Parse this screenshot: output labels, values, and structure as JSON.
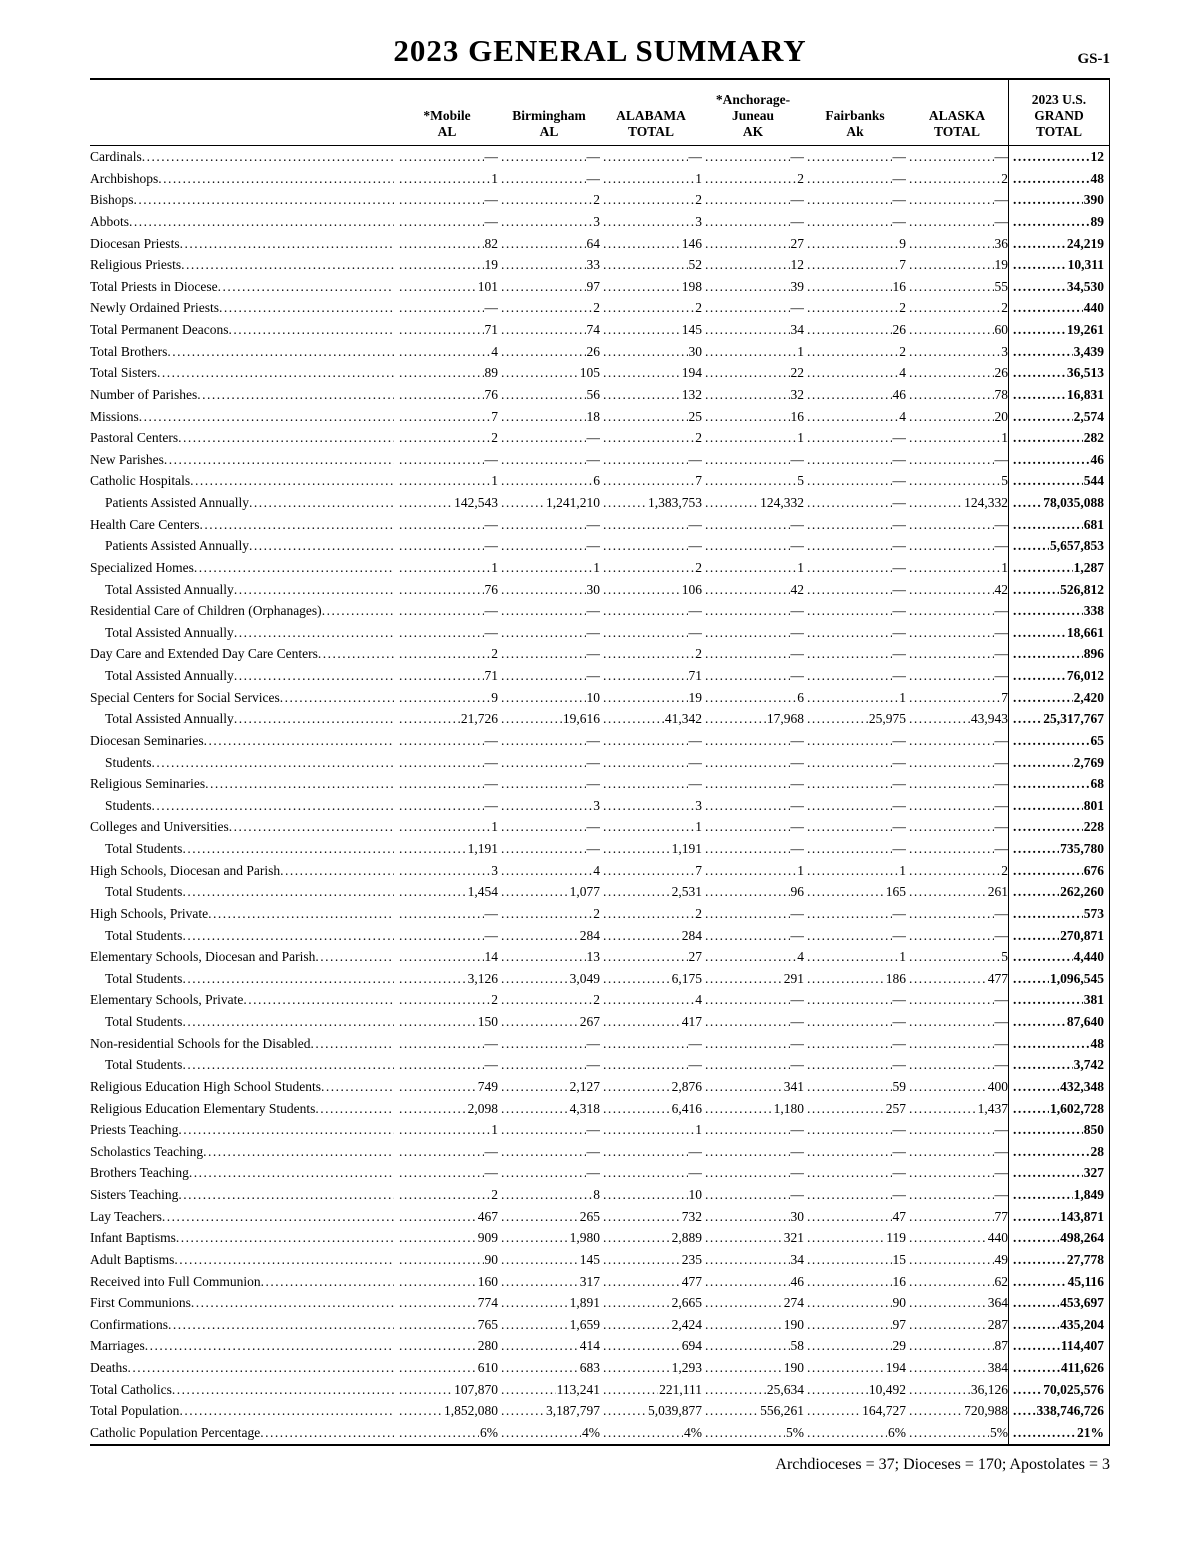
{
  "page": {
    "title": "2023 GENERAL SUMMARY",
    "page_code": "GS-1",
    "footer": "Archdioceses = 37; Dioceses = 170; Apostolates = 3"
  },
  "table": {
    "columns": [
      {
        "label": "*Mobile\nAL"
      },
      {
        "label": "Birmingham\nAL"
      },
      {
        "label": "ALABAMA\nTOTAL"
      },
      {
        "label": "*Anchorage-\nJuneau\nAK"
      },
      {
        "label": "Fairbanks\nAk"
      },
      {
        "label": "ALASKA\nTOTAL"
      },
      {
        "label": "2023 U.S.\nGRAND\nTOTAL"
      }
    ],
    "rows": [
      {
        "label": "Cardinals",
        "indent": 0,
        "values": [
          "—",
          "—",
          "—",
          "—",
          "—",
          "—",
          "12"
        ]
      },
      {
        "label": "Archbishops",
        "indent": 0,
        "values": [
          "1",
          "—",
          "1",
          "2",
          "—",
          "2",
          "48"
        ]
      },
      {
        "label": "Bishops",
        "indent": 0,
        "values": [
          "—",
          "2",
          "2",
          "—",
          "—",
          "—",
          "390"
        ]
      },
      {
        "label": "Abbots",
        "indent": 0,
        "values": [
          "—",
          "3",
          "3",
          "—",
          "—",
          "—",
          "89"
        ]
      },
      {
        "label": "Diocesan Priests",
        "indent": 0,
        "values": [
          "82",
          "64",
          "146",
          "27",
          "9",
          "36",
          "24,219"
        ]
      },
      {
        "label": "Religious Priests",
        "indent": 0,
        "values": [
          "19",
          "33",
          "52",
          "12",
          "7",
          "19",
          "10,311"
        ]
      },
      {
        "label": "Total Priests in Diocese",
        "indent": 0,
        "values": [
          "101",
          "97",
          "198",
          "39",
          "16",
          "55",
          "34,530"
        ]
      },
      {
        "label": "Newly Ordained Priests",
        "indent": 0,
        "values": [
          "—",
          "2",
          "2",
          "—",
          "2",
          "2",
          "440"
        ]
      },
      {
        "label": "Total Permanent Deacons",
        "indent": 0,
        "values": [
          "71",
          "74",
          "145",
          "34",
          "26",
          "60",
          "19,261"
        ]
      },
      {
        "label": "Total Brothers",
        "indent": 0,
        "values": [
          "4",
          "26",
          "30",
          "1",
          "2",
          "3",
          "3,439"
        ]
      },
      {
        "label": "Total Sisters",
        "indent": 0,
        "values": [
          "89",
          "105",
          "194",
          "22",
          "4",
          "26",
          "36,513"
        ]
      },
      {
        "label": "Number of Parishes",
        "indent": 0,
        "values": [
          "76",
          "56",
          "132",
          "32",
          "46",
          "78",
          "16,831"
        ]
      },
      {
        "label": "Missions",
        "indent": 0,
        "values": [
          "7",
          "18",
          "25",
          "16",
          "4",
          "20",
          "2,574"
        ]
      },
      {
        "label": "Pastoral Centers",
        "indent": 0,
        "values": [
          "2",
          "—",
          "2",
          "1",
          "—",
          "1",
          "282"
        ]
      },
      {
        "label": "New Parishes",
        "indent": 0,
        "values": [
          "—",
          "—",
          "—",
          "—",
          "—",
          "—",
          "46"
        ]
      },
      {
        "label": "Catholic Hospitals",
        "indent": 0,
        "values": [
          "1",
          "6",
          "7",
          "5",
          "—",
          "5",
          "544"
        ]
      },
      {
        "label": "Patients Assisted Annually",
        "indent": 1,
        "values": [
          "142,543",
          "1,241,210",
          "1,383,753",
          "124,332",
          "—",
          "124,332",
          "78,035,088"
        ]
      },
      {
        "label": "Health Care Centers",
        "indent": 0,
        "values": [
          "—",
          "—",
          "—",
          "—",
          "—",
          "—",
          "681"
        ]
      },
      {
        "label": "Patients Assisted Annually",
        "indent": 1,
        "values": [
          "—",
          "—",
          "—",
          "—",
          "—",
          "—",
          "5,657,853"
        ]
      },
      {
        "label": "Specialized Homes",
        "indent": 0,
        "values": [
          "1",
          "1",
          "2",
          "1",
          "—",
          "1",
          "1,287"
        ]
      },
      {
        "label": "Total Assisted Annually",
        "indent": 1,
        "values": [
          "76",
          "30",
          "106",
          "42",
          "—",
          "42",
          "526,812"
        ]
      },
      {
        "label": "Residential Care of Children (Orphanages)",
        "indent": 0,
        "values": [
          "—",
          "—",
          "—",
          "—",
          "—",
          "—",
          "338"
        ]
      },
      {
        "label": "Total Assisted Annually",
        "indent": 1,
        "values": [
          "—",
          "—",
          "—",
          "—",
          "—",
          "—",
          "18,661"
        ]
      },
      {
        "label": "Day Care and Extended Day Care Centers",
        "indent": 0,
        "values": [
          "2",
          "—",
          "2",
          "—",
          "—",
          "—",
          "896"
        ]
      },
      {
        "label": "Total Assisted Annually",
        "indent": 1,
        "values": [
          "71",
          "—",
          "71",
          "—",
          "—",
          "—",
          "76,012"
        ]
      },
      {
        "label": "Special Centers for Social Services",
        "indent": 0,
        "values": [
          "9",
          "10",
          "19",
          "6",
          "1",
          "7",
          "2,420"
        ]
      },
      {
        "label": "Total Assisted Annually",
        "indent": 1,
        "values": [
          "21,726",
          "19,616",
          "41,342",
          "17,968",
          "25,975",
          "43,943",
          "25,317,767"
        ]
      },
      {
        "label": "Diocesan Seminaries",
        "indent": 0,
        "values": [
          "—",
          "—",
          "—",
          "—",
          "—",
          "—",
          "65"
        ]
      },
      {
        "label": "Students",
        "indent": 1,
        "values": [
          "—",
          "—",
          "—",
          "—",
          "—",
          "—",
          "2,769"
        ]
      },
      {
        "label": "Religious Seminaries",
        "indent": 0,
        "values": [
          "—",
          "—",
          "—",
          "—",
          "—",
          "—",
          "68"
        ]
      },
      {
        "label": "Students",
        "indent": 1,
        "values": [
          "—",
          "3",
          "3",
          "—",
          "—",
          "—",
          "801"
        ]
      },
      {
        "label": "Colleges and Universities",
        "indent": 0,
        "values": [
          "1",
          "—",
          "1",
          "—",
          "—",
          "—",
          "228"
        ]
      },
      {
        "label": "Total Students",
        "indent": 1,
        "values": [
          "1,191",
          "—",
          "1,191",
          "—",
          "—",
          "—",
          "735,780"
        ]
      },
      {
        "label": "High Schools, Diocesan and Parish",
        "indent": 0,
        "values": [
          "3",
          "4",
          "7",
          "1",
          "1",
          "2",
          "676"
        ]
      },
      {
        "label": "Total Students",
        "indent": 1,
        "values": [
          "1,454",
          "1,077",
          "2,531",
          "96",
          "165",
          "261",
          "262,260"
        ]
      },
      {
        "label": "High Schools, Private",
        "indent": 0,
        "values": [
          "—",
          "2",
          "2",
          "—",
          "—",
          "—",
          "573"
        ]
      },
      {
        "label": "Total Students",
        "indent": 1,
        "values": [
          "—",
          "284",
          "284",
          "—",
          "—",
          "—",
          "270,871"
        ]
      },
      {
        "label": "Elementary Schools, Diocesan and Parish",
        "indent": 0,
        "values": [
          "14",
          "13",
          "27",
          "4",
          "1",
          "5",
          "4,440"
        ]
      },
      {
        "label": "Total Students",
        "indent": 1,
        "values": [
          "3,126",
          "3,049",
          "6,175",
          "291",
          "186",
          "477",
          "1,096,545"
        ]
      },
      {
        "label": "Elementary Schools, Private",
        "indent": 0,
        "values": [
          "2",
          "2",
          "4",
          "—",
          "—",
          "—",
          "381"
        ]
      },
      {
        "label": "Total Students",
        "indent": 1,
        "values": [
          "150",
          "267",
          "417",
          "—",
          "—",
          "—",
          "87,640"
        ]
      },
      {
        "label": "Non-residential Schools for the Disabled",
        "indent": 0,
        "values": [
          "—",
          "—",
          "—",
          "—",
          "—",
          "—",
          "48"
        ]
      },
      {
        "label": "Total Students",
        "indent": 1,
        "values": [
          "—",
          "—",
          "—",
          "—",
          "—",
          "—",
          "3,742"
        ]
      },
      {
        "label": "Religious Education High School Students",
        "indent": 0,
        "values": [
          "749",
          "2,127",
          "2,876",
          "341",
          "59",
          "400",
          "432,348"
        ]
      },
      {
        "label": "Religious Education Elementary Students",
        "indent": 0,
        "values": [
          "2,098",
          "4,318",
          "6,416",
          "1,180",
          "257",
          "1,437",
          "1,602,728"
        ]
      },
      {
        "label": "Priests Teaching",
        "indent": 0,
        "values": [
          "1",
          "—",
          "1",
          "—",
          "—",
          "—",
          "850"
        ]
      },
      {
        "label": "Scholastics Teaching",
        "indent": 0,
        "values": [
          "—",
          "—",
          "—",
          "—",
          "—",
          "—",
          "28"
        ]
      },
      {
        "label": "Brothers Teaching",
        "indent": 0,
        "values": [
          "—",
          "—",
          "—",
          "—",
          "—",
          "—",
          "327"
        ]
      },
      {
        "label": "Sisters Teaching",
        "indent": 0,
        "values": [
          "2",
          "8",
          "10",
          "—",
          "—",
          "—",
          "1,849"
        ]
      },
      {
        "label": "Lay Teachers",
        "indent": 0,
        "values": [
          "467",
          "265",
          "732",
          "30",
          "47",
          "77",
          "143,871"
        ]
      },
      {
        "label": "Infant Baptisms",
        "indent": 0,
        "values": [
          "909",
          "1,980",
          "2,889",
          "321",
          "119",
          "440",
          "498,264"
        ]
      },
      {
        "label": "Adult Baptisms",
        "indent": 0,
        "values": [
          "90",
          "145",
          "235",
          "34",
          "15",
          "49",
          "27,778"
        ]
      },
      {
        "label": "Received into Full Communion",
        "indent": 0,
        "values": [
          "160",
          "317",
          "477",
          "46",
          "16",
          "62",
          "45,116"
        ]
      },
      {
        "label": "First Communions",
        "indent": 0,
        "values": [
          "774",
          "1,891",
          "2,665",
          "274",
          "90",
          "364",
          "453,697"
        ]
      },
      {
        "label": "Confirmations",
        "indent": 0,
        "values": [
          "765",
          "1,659",
          "2,424",
          "190",
          "97",
          "287",
          "435,204"
        ]
      },
      {
        "label": "Marriages",
        "indent": 0,
        "values": [
          "280",
          "414",
          "694",
          "58",
          "29",
          "87",
          "114,407"
        ]
      },
      {
        "label": "Deaths",
        "indent": 0,
        "values": [
          "610",
          "683",
          "1,293",
          "190",
          "194",
          "384",
          "411,626"
        ]
      },
      {
        "label": "Total Catholics",
        "indent": 0,
        "values": [
          "107,870",
          "113,241",
          "221,111",
          "25,634",
          "10,492",
          "36,126",
          "70,025,576"
        ]
      },
      {
        "label": "Total Population",
        "indent": 0,
        "values": [
          "1,852,080",
          "3,187,797",
          "5,039,877",
          "556,261",
          "164,727",
          "720,988",
          "338,746,726"
        ]
      },
      {
        "label": "Catholic Population Percentage",
        "indent": 0,
        "values": [
          "6%",
          "4%",
          "4%",
          "5%",
          "6%",
          "5%",
          "21%"
        ]
      }
    ]
  }
}
